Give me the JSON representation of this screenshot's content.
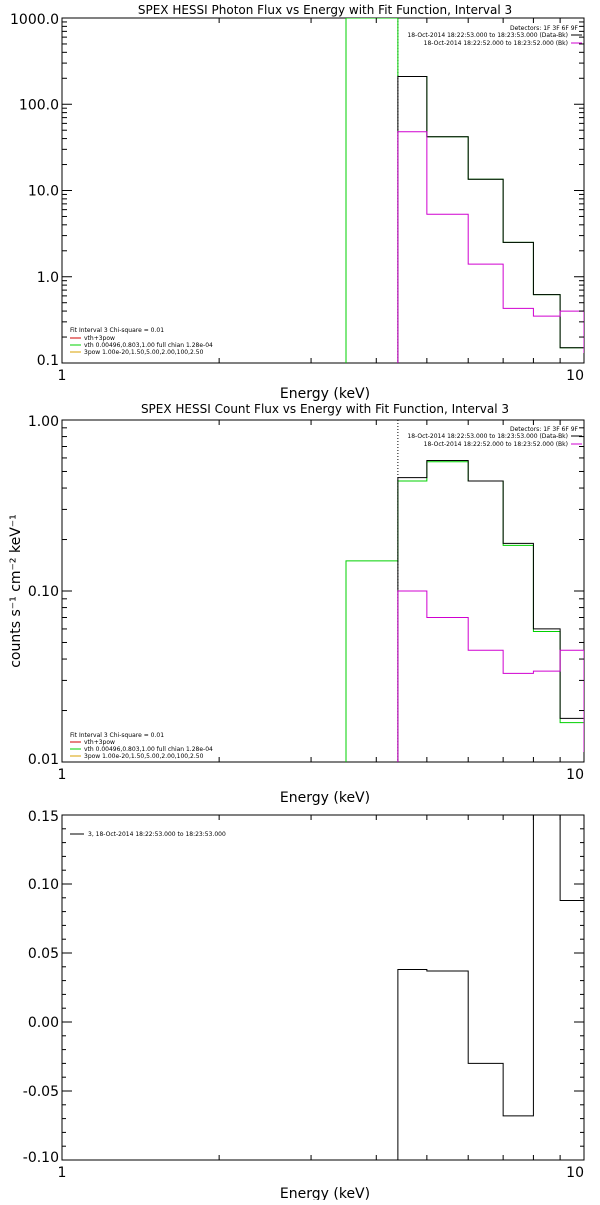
{
  "colors": {
    "black": "#000000",
    "green": "#00d000",
    "magenta": "#d000d0",
    "red": "#d00000",
    "orange": "#d8a000",
    "background": "#ffffff"
  },
  "chart_data": [
    {
      "type": "line",
      "title": "SPEX HESSI Photon Flux vs Energy with Fit Function, Interval 3",
      "xlabel": "Energy (keV)",
      "ylabel": "",
      "xscale": "log",
      "yscale": "log",
      "xlim": [
        1,
        10
      ],
      "ylim": [
        0.1,
        1000
      ],
      "xticks": [
        1,
        10
      ],
      "xticklabels": [
        "1",
        "10"
      ],
      "yticks": [
        0.1,
        1,
        10,
        100,
        1000
      ],
      "yticklabels": [
        "0.1",
        "1.0",
        "10.0",
        "100.0",
        "1000.0"
      ],
      "vline_x": 4.4,
      "header_lines": [
        "Detectors: 1F 3F 6F 9F",
        "18-Oct-2014 18:22:53.000 to 18:23:53.000 (Data-Bk)",
        "18-Oct-2014 18:22:52.000 to 18:23:52.000 (Bk)"
      ],
      "legend_lines": [
        "Fit Interval 3   Chi-square = 0.01",
        "vth+3pow",
        "vth 0.00496,0.803,1.00  full chian 1.28e-04",
        "3pow 1.00e-20,1.50,5.00,2.00,100,2.50"
      ],
      "series": [
        {
          "name": "vth+3pow",
          "edges": [
            3.5,
            4.4,
            5.0,
            6.0,
            7.0,
            8.0,
            9.0,
            10.0
          ],
          "values": [
            1000,
            210,
            42,
            13.5,
            2.5,
            0.62,
            0.15
          ],
          "color": "#00d000"
        },
        {
          "name": "(Data-Bk)",
          "edges": [
            4.4,
            5.0,
            6.0,
            7.0,
            8.0,
            9.0,
            10.0
          ],
          "values": [
            210,
            42,
            13.5,
            2.5,
            0.62,
            0.15
          ],
          "color": "#000000"
        },
        {
          "name": "(Bk)",
          "edges": [
            4.4,
            5.0,
            6.0,
            7.0,
            8.0,
            9.0,
            10.0
          ],
          "values": [
            48,
            5.3,
            1.4,
            0.43,
            0.35,
            0.4
          ],
          "color": "#d000d0"
        }
      ]
    },
    {
      "type": "line",
      "title": "SPEX HESSI Count Flux vs Energy with Fit Function, Interval 3",
      "xlabel": "Energy (keV)",
      "ylabel": "counts s⁻¹ cm⁻² keV⁻¹",
      "xscale": "log",
      "yscale": "log",
      "xlim": [
        1,
        10
      ],
      "ylim": [
        0.01,
        1.0
      ],
      "xticks": [
        1,
        10
      ],
      "xticklabels": [
        "1",
        "10"
      ],
      "yticks": [
        0.01,
        0.1,
        1.0
      ],
      "yticklabels": [
        "0.01",
        "0.10",
        "1.00"
      ],
      "vline_x": 4.4,
      "header_lines": [
        "Detectors: 1F 3F 6F 9F",
        "18-Oct-2014 18:22:53.000 to 18:23:53.000 (Data-Bk)",
        "18-Oct-2014 18:22:52.000 to 18:23:52.000 (Bk)"
      ],
      "legend_lines": [
        "Fit Interval 3   Chi-square = 0.01",
        "vth+3pow",
        "vth 0.00496,0.803,1.00  full chian 1.28e-04",
        "3pow 1.00e-20,1.50,5.00,2.00,100,2.50"
      ],
      "series": [
        {
          "name": "vth+3pow",
          "edges": [
            3.5,
            4.4,
            5.0,
            6.0,
            7.0,
            8.0,
            9.0,
            10.0
          ],
          "values": [
            0.15,
            0.44,
            0.57,
            0.44,
            0.185,
            0.058,
            0.017
          ],
          "color": "#00d000"
        },
        {
          "name": "(Data-Bk)",
          "edges": [
            4.4,
            5.0,
            6.0,
            7.0,
            8.0,
            9.0,
            10.0
          ],
          "values": [
            0.46,
            0.58,
            0.44,
            0.19,
            0.06,
            0.018
          ],
          "color": "#000000"
        },
        {
          "name": "(Bk)",
          "edges": [
            4.4,
            5.0,
            6.0,
            7.0,
            8.0,
            9.0,
            10.0
          ],
          "values": [
            0.1,
            0.07,
            0.045,
            0.033,
            0.034,
            0.045
          ],
          "color": "#d000d0"
        }
      ]
    },
    {
      "type": "line",
      "title": "",
      "xlabel": "Energy (keV)",
      "ylabel": "",
      "xscale": "log",
      "yscale": "linear",
      "xlim": [
        1,
        10
      ],
      "ylim": [
        -0.1,
        0.15
      ],
      "xticks": [
        1,
        10
      ],
      "xticklabels": [
        "1",
        "10"
      ],
      "yticks": [
        -0.1,
        -0.05,
        0,
        0.05,
        0.1,
        0.15
      ],
      "yticklabels": [
        "-0.10",
        "-0.05",
        "0.00",
        "0.05",
        "0.10",
        "0.15"
      ],
      "legend_lines": [
        "3, 18-Oct-2014 18:22:53.000 to 18:23:53.000"
      ],
      "series": [
        {
          "name": "3, 18-Oct-2014 18:22:53.000 to 18:23:53.000",
          "edges": [
            4.4,
            5.0,
            6.0,
            7.0,
            8.0,
            9.0,
            10.0
          ],
          "values": [
            0.038,
            0.037,
            -0.03,
            -0.068,
            0.15,
            0.088
          ],
          "color": "#000000"
        }
      ]
    }
  ]
}
